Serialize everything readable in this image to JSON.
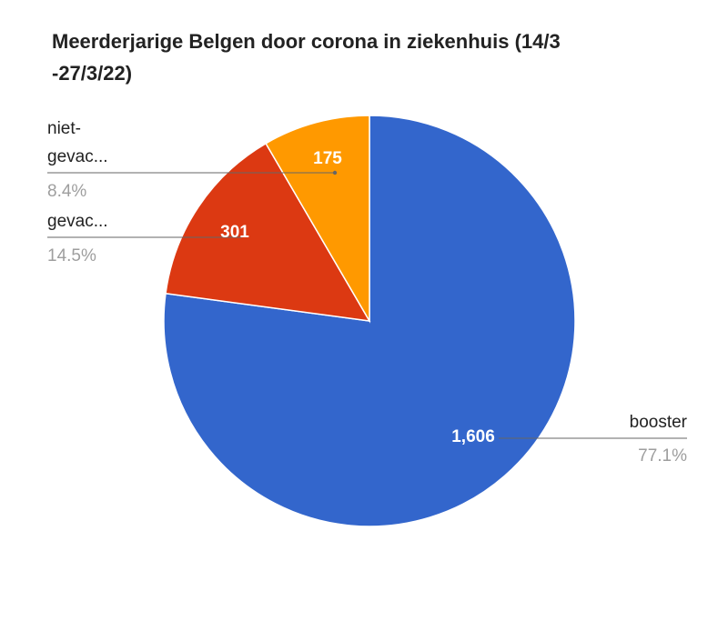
{
  "chart_data": {
    "type": "pie",
    "title_lines": [
      "Meerderjarige Belgen door corona in ziekenhuis (14/3",
      "-27/3/22)"
    ],
    "slices": [
      {
        "label": "booster",
        "label_lines": [
          "booster"
        ],
        "value": 1606,
        "value_label": "1,606",
        "percent_label": "77.1%",
        "color": "#3366cc"
      },
      {
        "label": "gevac...",
        "label_lines": [
          "gevac..."
        ],
        "value": 301,
        "value_label": "301",
        "percent_label": "14.5%",
        "color": "#dc3912"
      },
      {
        "label": "niet-gevac...",
        "label_lines": [
          "niet-",
          "gevac..."
        ],
        "value": 175,
        "value_label": "175",
        "percent_label": "8.4%",
        "color": "#ff9900"
      }
    ],
    "legend": "labeled slices",
    "start_angle": "12 o'clock",
    "direction": "clockwise"
  }
}
